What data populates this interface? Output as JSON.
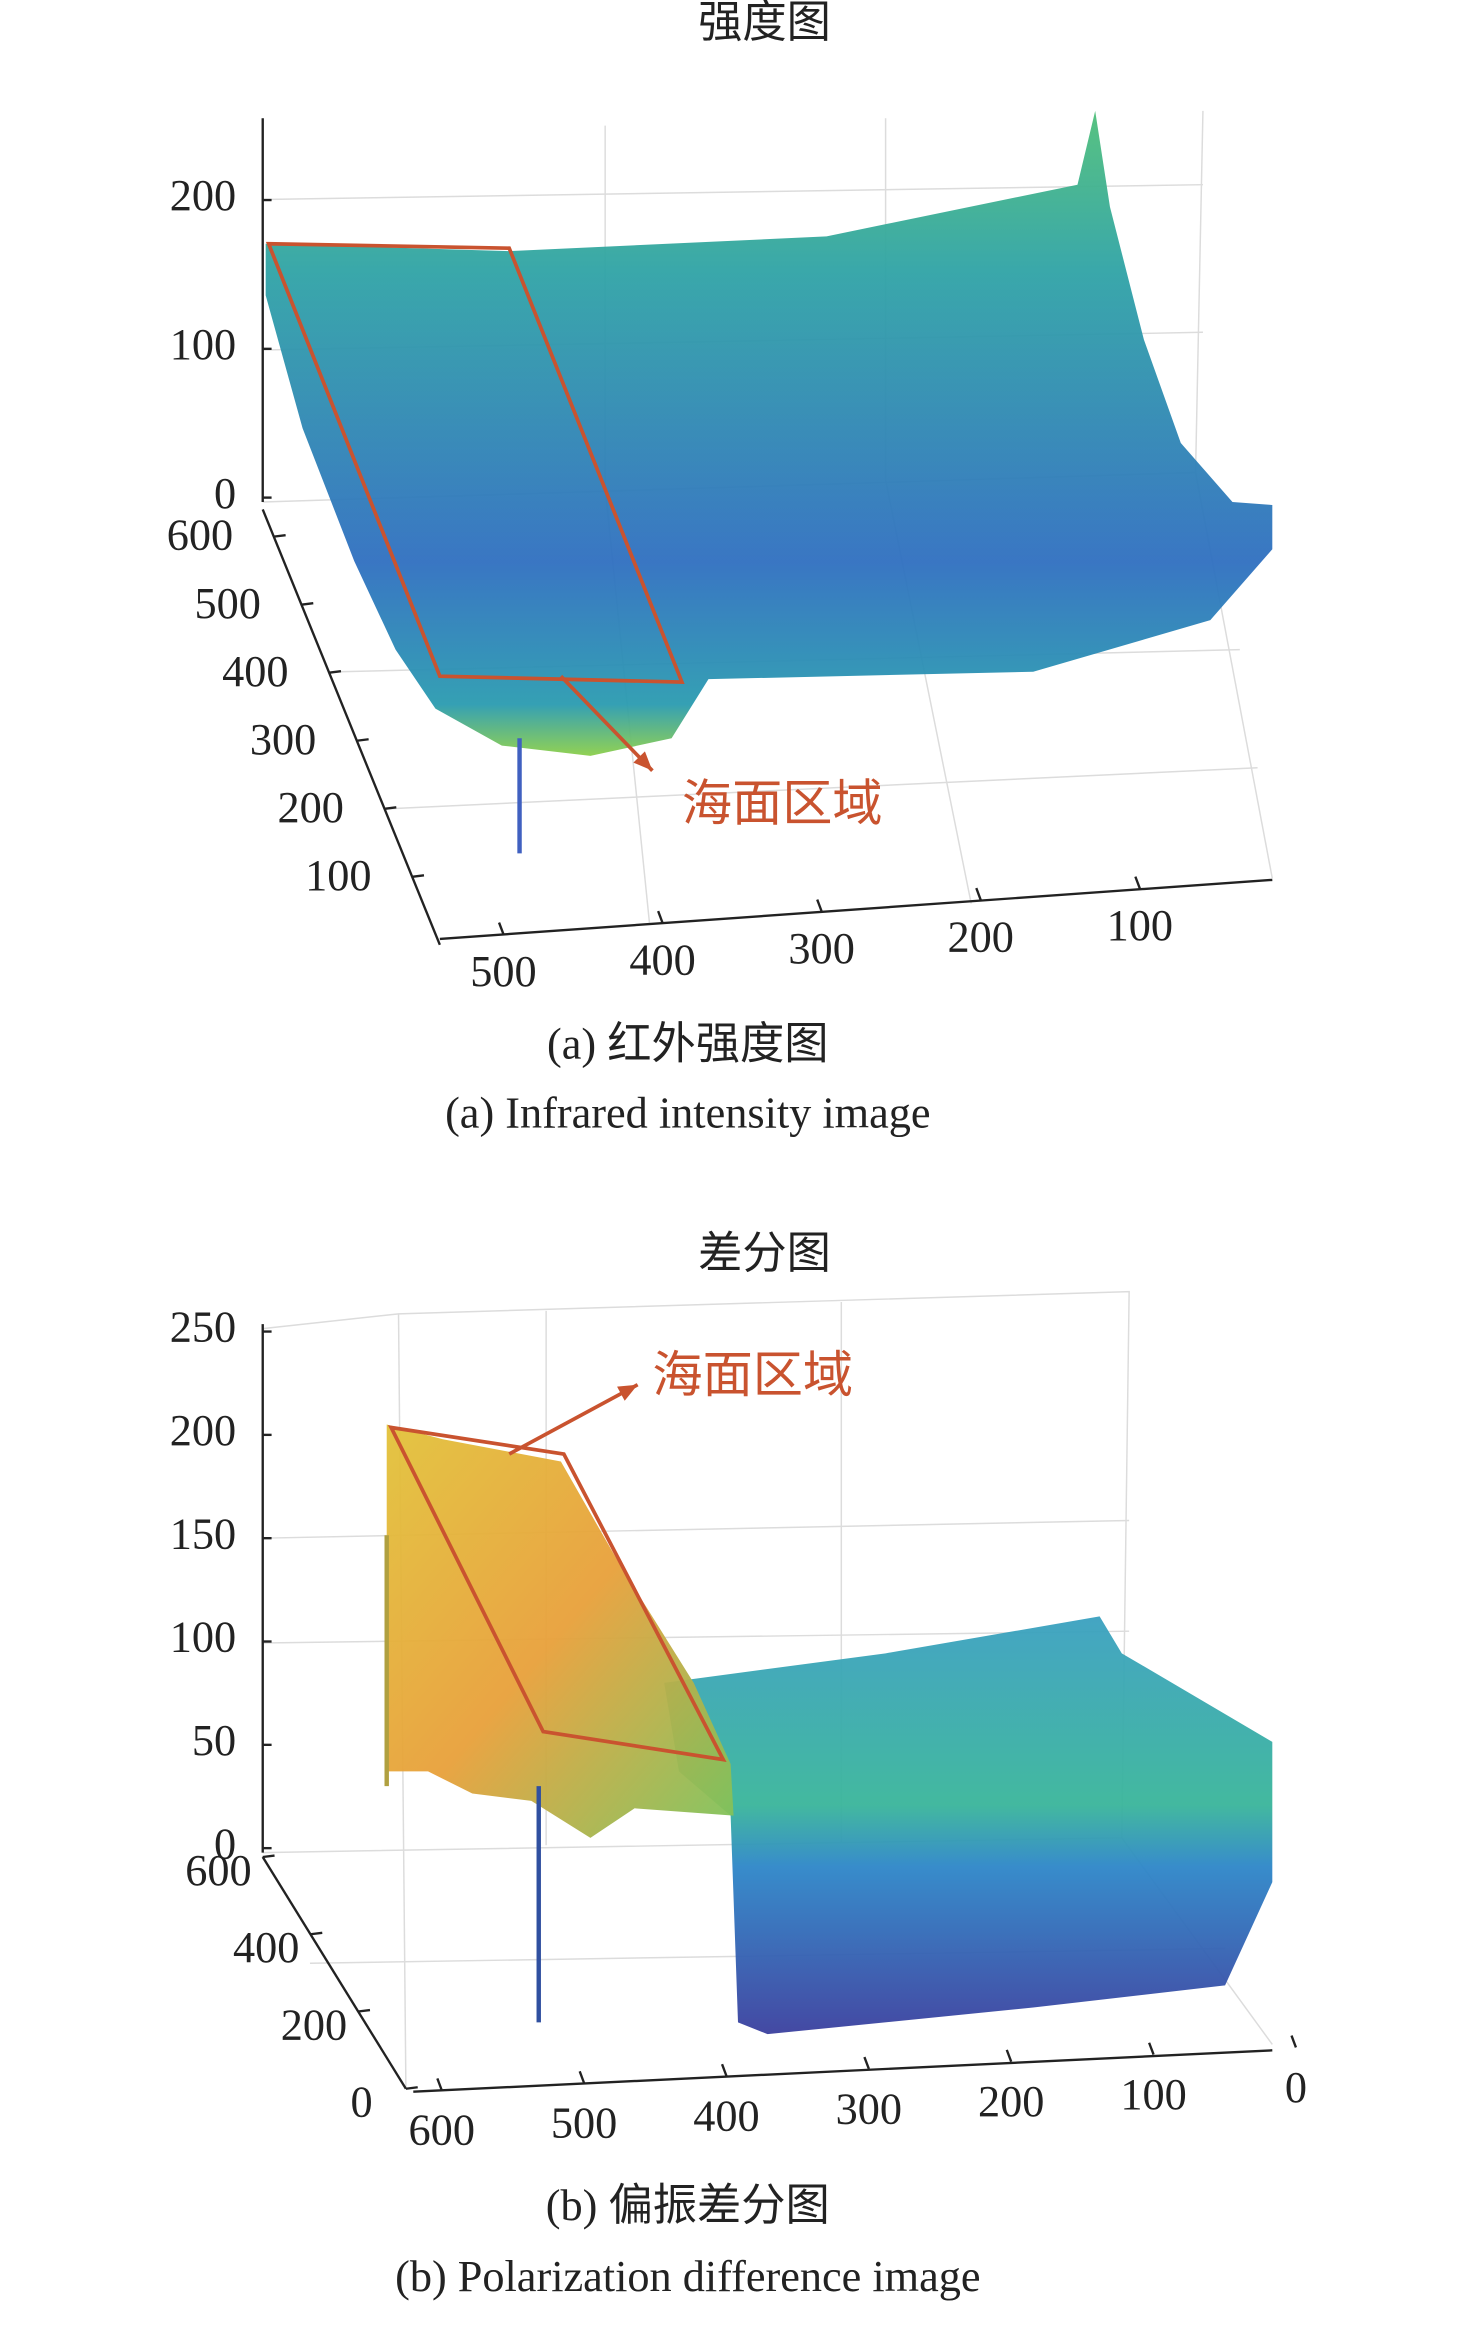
{
  "chart_data": [
    {
      "type": "surface",
      "title": "强度图",
      "zlim": [
        0,
        250
      ],
      "zticks": [
        0,
        100,
        200
      ],
      "ylim": [
        0,
        640
      ],
      "yticks": [
        100,
        200,
        300,
        400,
        500,
        600
      ],
      "xlim": [
        540,
        0
      ],
      "xticks": [
        500,
        400,
        300,
        200,
        100
      ],
      "annotation": "海面区域",
      "annotation_color": "#c9532f",
      "captions": [
        "(a) 红外强度图",
        "(a) Infrared intensity image"
      ]
    },
    {
      "type": "surface",
      "title": "差分图",
      "zlim": [
        0,
        250
      ],
      "zticks": [
        0,
        50,
        100,
        150,
        200,
        250
      ],
      "ylim": [
        0,
        600
      ],
      "yticks": [
        0,
        200,
        400,
        600
      ],
      "xlim": [
        620,
        0
      ],
      "xticks": [
        600,
        500,
        400,
        300,
        200,
        100,
        0
      ],
      "annotation": "海面区域",
      "annotation_color": "#c9532f",
      "captions": [
        "(b) 偏振差分图",
        "(b) Polarization difference image"
      ]
    }
  ]
}
